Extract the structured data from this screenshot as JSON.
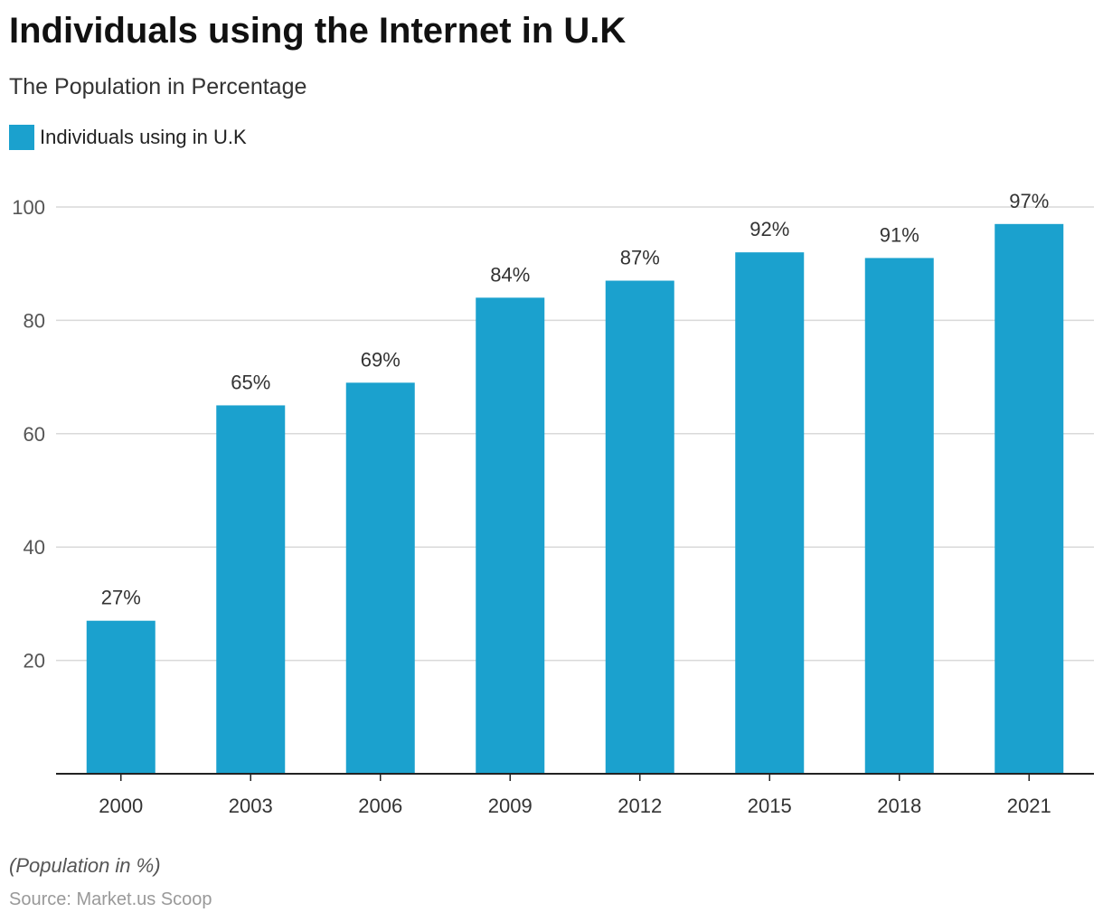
{
  "header": {
    "title": "Individuals using the Internet in U.K",
    "subtitle": "The Population in Percentage"
  },
  "legend": {
    "label": "Individuals using in U.K"
  },
  "footer": {
    "note": "(Population in %)",
    "source": "Source: Market.us Scoop"
  },
  "colors": {
    "bar": "#1ba1ce",
    "grid": "#d9d9d9",
    "axis": "#222222",
    "tick_text": "#555555",
    "label_text": "#333333"
  },
  "chart_data": {
    "type": "bar",
    "title": "Individuals using the Internet in U.K",
    "subtitle": "The Population in Percentage",
    "xlabel": "",
    "ylabel": "",
    "categories": [
      "2000",
      "2003",
      "2006",
      "2009",
      "2012",
      "2015",
      "2018",
      "2021"
    ],
    "series": [
      {
        "name": "Individuals using in U.K",
        "values": [
          27,
          65,
          69,
          84,
          87,
          92,
          91,
          97
        ],
        "labels": [
          "27%",
          "65%",
          "69%",
          "84%",
          "87%",
          "92%",
          "91%",
          "97%"
        ]
      }
    ],
    "ylim": [
      0,
      100
    ],
    "yticks": [
      20,
      40,
      60,
      80,
      100
    ],
    "grid": true,
    "legend_position": "top-left"
  }
}
